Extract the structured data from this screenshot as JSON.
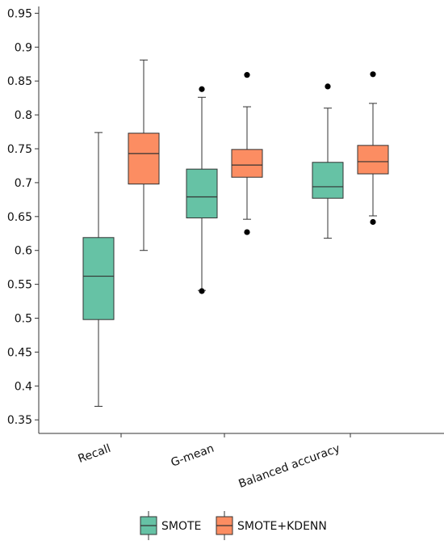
{
  "chart_data": {
    "type": "box",
    "categories": [
      "Recall",
      "G-mean",
      "Balanced accuracy"
    ],
    "ylim": [
      0.33,
      0.96
    ],
    "yticks": [
      0.35,
      0.4,
      0.45,
      0.5,
      0.55,
      0.6,
      0.65,
      0.7,
      0.75,
      0.8,
      0.85,
      0.9,
      0.95
    ],
    "ytick_labels": [
      "0.35",
      "0.4",
      "0.45",
      "0.5",
      "0.55",
      "0.6",
      "0.65",
      "0.7",
      "0.75",
      "0.8",
      "0.85",
      "0.9",
      "0.95"
    ],
    "grid": false,
    "legend_position": "bottom",
    "series": [
      {
        "name": "SMOTE",
        "color": "#66c2a5",
        "boxes": [
          {
            "whisker_low": 0.37,
            "q1": 0.498,
            "median": 0.562,
            "q3": 0.619,
            "whisker_high": 0.774,
            "outliers": []
          },
          {
            "whisker_low": 0.541,
            "q1": 0.648,
            "median": 0.679,
            "q3": 0.72,
            "whisker_high": 0.826,
            "outliers": [
              0.838,
              0.54
            ]
          },
          {
            "whisker_low": 0.618,
            "q1": 0.677,
            "median": 0.694,
            "q3": 0.73,
            "whisker_high": 0.81,
            "outliers": [
              0.842
            ]
          }
        ]
      },
      {
        "name": "SMOTE+KDENN",
        "color": "#fc8d62",
        "boxes": [
          {
            "whisker_low": 0.6,
            "q1": 0.698,
            "median": 0.743,
            "q3": 0.773,
            "whisker_high": 0.881,
            "outliers": []
          },
          {
            "whisker_low": 0.646,
            "q1": 0.708,
            "median": 0.726,
            "q3": 0.749,
            "whisker_high": 0.812,
            "outliers": [
              0.859,
              0.627
            ]
          },
          {
            "whisker_low": 0.651,
            "q1": 0.713,
            "median": 0.731,
            "q3": 0.755,
            "whisker_high": 0.817,
            "outliers": [
              0.86,
              0.642
            ]
          }
        ]
      }
    ]
  }
}
